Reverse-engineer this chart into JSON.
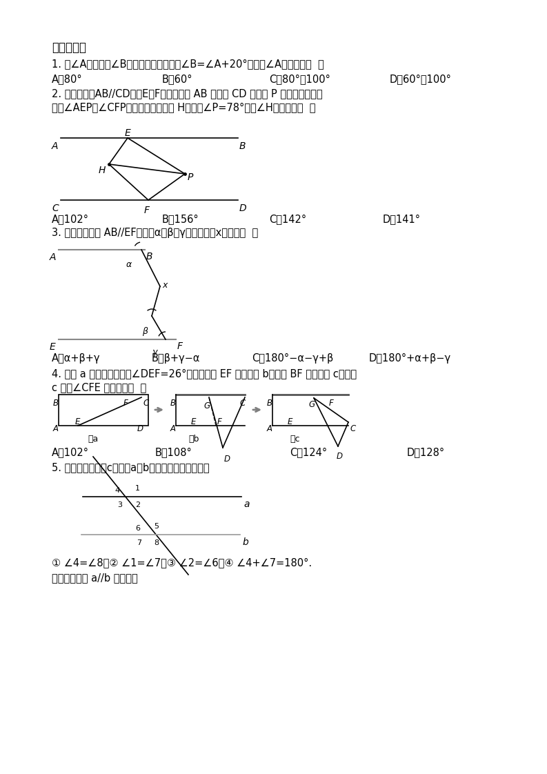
{
  "title": "一、选择题",
  "q1_text": "1. 若∠A的两边与∠B的两边分别平行，且∠B=∠A+20°，那么∠A的度数为（  ）",
  "q1_opts": [
    "A．80°",
    "B．60°",
    "C．80°或100°",
    "D．60°或100°"
  ],
  "q2_text1": "2. 如图，直线AB//CD，点E、F分别在直线 AB 和直线 CD 上，点 P 在两条平行线之",
  "q2_text2": "间，∠AEP和∠CFP的角平分线交于点 H，已知∠P=78°，则∠H的度数为（  ）",
  "q2_opts": [
    "A．102°",
    "B．156°",
    "C．142°",
    "D．141°"
  ],
  "q3_text": "3. 如图所示，若 AB//EF，用含α、β、γ的式子表示x，应为（  ）",
  "q3_opts": [
    "A．α+β+γ",
    "B．β+γ−α",
    "C．180°−α−γ+β",
    "D．180°+α+β−γ"
  ],
  "q4_text1": "4. 如图 a 是长方形纸带，∠DEF=26°，将纸带沿 EF 折叠成图 b，再沿 BF 折叠成图 c，则图",
  "q4_text2": "c 中的∠CFE 的度数是（  ）",
  "q4_opts": [
    "A．102°",
    "B．108°",
    "C．124°",
    "D．128°"
  ],
  "q5_text": "5. 如图所示，直线c截直线a，b，给出下列以下条件：",
  "q5_conds": "① ∠4=∠8；② ∠1=∠7；③ ∠2=∠6；④ ∠4+∠7=180°.",
  "q5_end": "其中能够说明 a//b 的条件有",
  "bg_color": "#ffffff",
  "text_color": "#000000",
  "num_color": "#1a5fb4"
}
